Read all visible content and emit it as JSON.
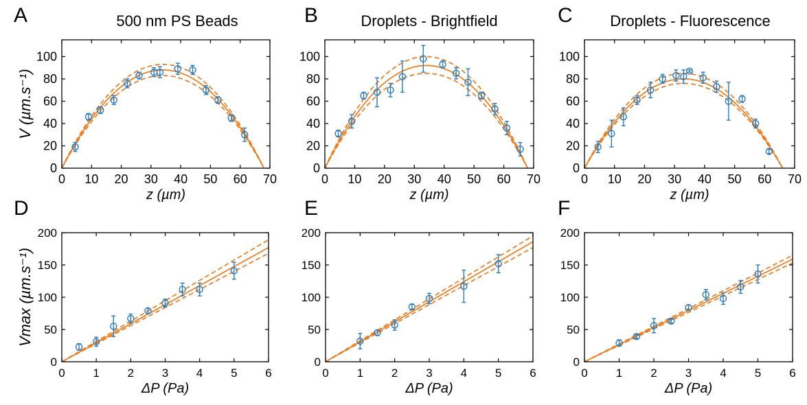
{
  "colors": {
    "data": "#2a7ab9",
    "fit": "#e8822a",
    "axis": "#000000"
  },
  "chart_data": [
    {
      "type": "scatter",
      "panel": "A",
      "title": "500 nm PS Beads",
      "xlabel": "z (µm)",
      "ylabel": "V (µm.s⁻¹)",
      "xlim": [
        0,
        70
      ],
      "ylim": [
        0,
        115
      ],
      "xticks": [
        0,
        10,
        20,
        30,
        40,
        50,
        60,
        70
      ],
      "yticks": [
        0,
        20,
        40,
        60,
        80,
        100
      ],
      "series": [
        {
          "x": [
            4.5,
            9,
            13,
            17.5,
            22,
            26,
            31,
            33,
            39,
            44,
            48.5,
            52.5,
            57,
            61.5
          ],
          "y": [
            19,
            46,
            52,
            61,
            76,
            83,
            86,
            86,
            89,
            88,
            70,
            61,
            45,
            30
          ],
          "err": [
            4,
            3,
            3,
            4,
            4,
            3,
            4,
            5,
            5,
            4,
            4,
            3,
            3,
            6
          ]
        }
      ],
      "fit": {
        "type": "parabola",
        "x_range": [
          0,
          68
        ],
        "center": 34,
        "peak": 88,
        "peak_band": [
          83,
          93
        ]
      }
    },
    {
      "type": "scatter",
      "panel": "B",
      "title": "Droplets - Brightfield",
      "xlabel": "z (µm)",
      "ylabel": "",
      "xlim": [
        0,
        70
      ],
      "ylim": [
        0,
        115
      ],
      "xticks": [
        0,
        10,
        20,
        30,
        40,
        50,
        60,
        70
      ],
      "yticks": [
        0,
        20,
        40,
        60,
        80,
        100
      ],
      "series": [
        {
          "x": [
            4.5,
            9,
            13,
            17.5,
            22,
            26,
            33,
            39.5,
            44,
            48,
            52.5,
            57,
            61,
            65.5
          ],
          "y": [
            31,
            42,
            65,
            68,
            70,
            82,
            98,
            93,
            85,
            77,
            65,
            53,
            36,
            17
          ],
          "err": [
            3,
            6,
            3,
            13,
            6,
            14,
            12,
            3,
            5,
            12,
            3,
            5,
            6,
            6
          ]
        }
      ],
      "fit": {
        "type": "parabola",
        "x_range": [
          0,
          68
        ],
        "center": 34,
        "peak": 92,
        "peak_band": [
          85,
          100
        ]
      }
    },
    {
      "type": "scatter",
      "panel": "C",
      "title": "Droplets - Fluorescence",
      "xlabel": "z (µm)",
      "ylabel": "",
      "xlim": [
        0,
        70
      ],
      "ylim": [
        0,
        115
      ],
      "xticks": [
        0,
        10,
        20,
        30,
        40,
        50,
        60,
        70
      ],
      "yticks": [
        0,
        20,
        40,
        60,
        80,
        100
      ],
      "series": [
        {
          "x": [
            4.5,
            9,
            13,
            17.5,
            22,
            26,
            30.5,
            33,
            35,
            39.5,
            44,
            48,
            52.5,
            57,
            61.5
          ],
          "y": [
            19,
            31,
            46,
            61,
            70,
            80,
            83,
            82,
            87,
            81,
            73,
            60,
            62,
            40,
            15
          ],
          "err": [
            5,
            12,
            8,
            4,
            7,
            4,
            5,
            6,
            1,
            5,
            5,
            17,
            3,
            4,
            2
          ]
        }
      ],
      "fit": {
        "type": "parabola",
        "x_range": [
          0,
          66
        ],
        "center": 33,
        "peak": 80,
        "peak_band": [
          76,
          85
        ]
      }
    },
    {
      "type": "scatter",
      "panel": "D",
      "title": "",
      "xlabel": "ΔP (Pa)",
      "ylabel": "Vmax (µm.s⁻¹)",
      "xlim": [
        0,
        6
      ],
      "ylim": [
        0,
        200
      ],
      "xticks": [
        0,
        1,
        2,
        3,
        4,
        5,
        6
      ],
      "yticks": [
        0,
        50,
        100,
        150,
        200
      ],
      "series": [
        {
          "x": [
            0.5,
            1,
            1.5,
            2,
            2.5,
            3,
            3.5,
            4,
            5
          ],
          "y": [
            23,
            31,
            55,
            67,
            79,
            91,
            112,
            112,
            141
          ],
          "err": [
            5,
            7,
            16,
            7,
            4,
            6,
            10,
            10,
            13
          ]
        }
      ],
      "fit": {
        "type": "linear",
        "slope": 29.5,
        "band": [
          28,
          31.5
        ]
      }
    },
    {
      "type": "scatter",
      "panel": "E",
      "title": "",
      "xlabel": "ΔP (Pa)",
      "ylabel": "",
      "xlim": [
        0,
        6
      ],
      "ylim": [
        0,
        200
      ],
      "xticks": [
        0,
        1,
        2,
        3,
        4,
        5,
        6
      ],
      "yticks": [
        0,
        50,
        100,
        150,
        200
      ],
      "series": [
        {
          "x": [
            1,
            1.5,
            2,
            2.5,
            3,
            4,
            5
          ],
          "y": [
            32,
            45,
            57,
            85,
            98,
            117,
            152
          ],
          "err": [
            12,
            4,
            8,
            4,
            8,
            25,
            14
          ]
        }
      ],
      "fit": {
        "type": "linear",
        "slope": 31,
        "band": [
          29.5,
          32.5
        ]
      }
    },
    {
      "type": "scatter",
      "panel": "F",
      "title": "",
      "xlabel": "ΔP (Pa)",
      "ylabel": "",
      "xlim": [
        0,
        6
      ],
      "ylim": [
        0,
        200
      ],
      "xticks": [
        0,
        1,
        2,
        3,
        4,
        5,
        6
      ],
      "yticks": [
        0,
        50,
        100,
        150,
        200
      ],
      "series": [
        {
          "x": [
            1,
            1.5,
            2,
            2.5,
            3,
            3.5,
            4,
            4.5,
            5
          ],
          "y": [
            29,
            39,
            56,
            63,
            84,
            104,
            98,
            116,
            136
          ],
          "err": [
            5,
            3,
            11,
            3,
            4,
            8,
            9,
            10,
            14
          ]
        }
      ],
      "fit": {
        "type": "linear",
        "slope": 26.5,
        "band": [
          25.5,
          27.5
        ]
      }
    }
  ]
}
